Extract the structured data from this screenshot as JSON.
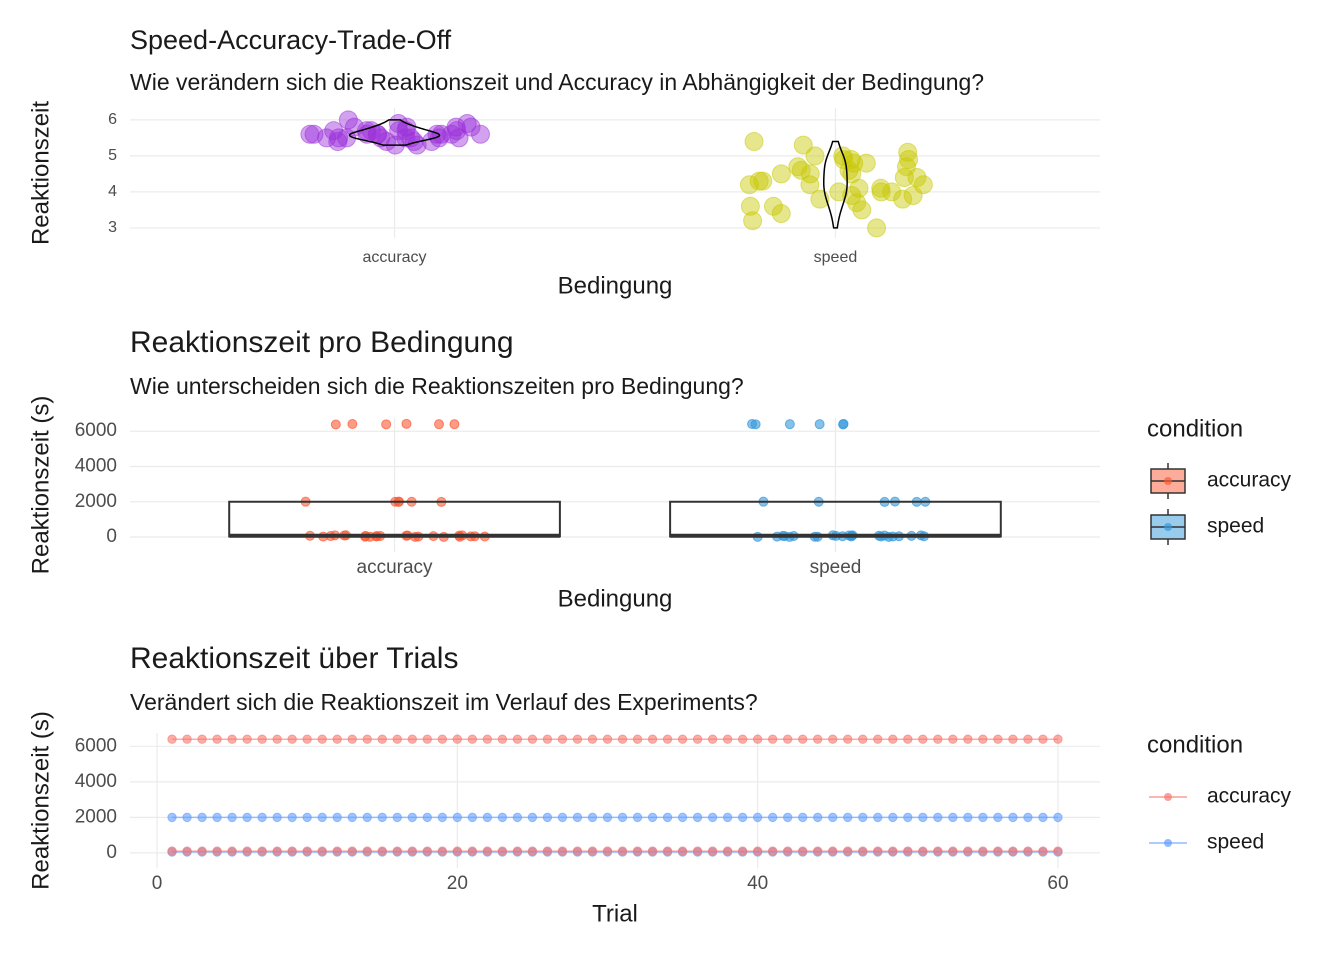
{
  "chart_data": [
    {
      "type": "violin",
      "title": "Speed-Accuracy-Trade-Off",
      "subtitle": "Wie verändern sich die Reaktionszeit und Accuracy in Abhängigkeit der Bedingung?",
      "x_label": "Bedingung",
      "y_label": "Reaktionszeit",
      "categories": [
        "accuracy",
        "speed"
      ],
      "colors": [
        "#9b30d9",
        "#c8c800"
      ],
      "values": [
        [
          5.5,
          5.6,
          5.7,
          5.4,
          5.8,
          5.6,
          5.5,
          5.3,
          5.7,
          5.9,
          5.6,
          5.5,
          5.4,
          5.6,
          5.8,
          5.7,
          5.5,
          6.0,
          5.6,
          5.4,
          5.5,
          5.7,
          5.6,
          5.3,
          5.8,
          5.5,
          5.6,
          5.7,
          5.9,
          5.4,
          5.6,
          5.5,
          5.7,
          5.6,
          5.8,
          5.5
        ],
        [
          4.9,
          5.4,
          4.2,
          3.8,
          4.5,
          5.1,
          3.5,
          4.0,
          4.3,
          4.8,
          3.9,
          4.6,
          5.0,
          4.1,
          3.7,
          4.4,
          4.9,
          3.2,
          4.0,
          4.7,
          5.3,
          3.6,
          4.2,
          4.5,
          3.0,
          4.8,
          4.1,
          3.9,
          4.6,
          3.4,
          4.3,
          5.0,
          4.4,
          3.8,
          4.7,
          4.2,
          3.6,
          4.9,
          4.0,
          4.5
        ]
      ],
      "ylim": [
        2.72,
        6.33
      ],
      "yticks": [
        3,
        4,
        5,
        6
      ],
      "grid": true
    },
    {
      "type": "box",
      "title": "Reaktionszeit pro Bedingung",
      "subtitle": "Wie unterscheiden sich die Reaktionszeiten pro Bedingung?",
      "x_label": "Bedingung",
      "y_label": "Reaktionszeit (s)",
      "categories": [
        "accuracy",
        "speed"
      ],
      "legend_title": "condition",
      "legend": "right",
      "series": [
        {
          "name": "accuracy",
          "color": "#fc5a35",
          "values": [
            6380,
            6400,
            6420,
            6390,
            6410,
            6400,
            1990,
            2000,
            2010,
            1995,
            2005,
            2000,
            10,
            40,
            80,
            20,
            60,
            100,
            30,
            50,
            90,
            15,
            70,
            25,
            45,
            85,
            5,
            55,
            35,
            95,
            65,
            75,
            12,
            48,
            88,
            22
          ]
        },
        {
          "name": "speed",
          "color": "#3498db",
          "values": [
            6390,
            6410,
            6400,
            6380,
            6420,
            6400,
            2000,
            1995,
            2005,
            2010,
            1990,
            2000,
            8,
            42,
            78,
            18,
            62,
            98,
            28,
            52,
            92,
            14,
            68,
            26,
            44,
            84,
            6,
            56,
            34,
            94,
            66,
            74,
            10,
            46,
            86,
            24
          ]
        }
      ],
      "ylim": [
        -850,
        6750
      ],
      "yticks": [
        0,
        2000,
        4000,
        6000
      ],
      "grid": true
    },
    {
      "type": "line",
      "title": "Reaktionszeit über Trials",
      "subtitle": "Verändert sich die Reaktionszeit im Verlauf des Experiments?",
      "x_label": "Trial",
      "y_label": "Reaktionszeit (s)",
      "legend_title": "condition",
      "legend": "right",
      "x": [
        1,
        2,
        3,
        4,
        5,
        6,
        7,
        8,
        9,
        10,
        11,
        12,
        13,
        14,
        15,
        16,
        17,
        18,
        19,
        20,
        21,
        22,
        23,
        24,
        25,
        26,
        27,
        28,
        29,
        30,
        31,
        32,
        33,
        34,
        35,
        36,
        37,
        38,
        39,
        40,
        41,
        42,
        43,
        44,
        45,
        46,
        47,
        48,
        49,
        50,
        51,
        52,
        53,
        54,
        55,
        56,
        57,
        58,
        59,
        60
      ],
      "series": [
        {
          "name": "accuracy",
          "color": "#F8766D",
          "values": [
            6400,
            6400,
            6400,
            6400,
            6400,
            6400,
            6400,
            6400,
            6400,
            6400,
            6400,
            6400,
            6400,
            6400,
            6400,
            6400,
            6400,
            6400,
            6400,
            6400,
            6400,
            6400,
            6400,
            6400,
            6400,
            6400,
            6400,
            6400,
            6400,
            6400,
            6400,
            6400,
            6400,
            6400,
            6400,
            6400,
            6400,
            6400,
            6400,
            6400,
            6400,
            6400,
            6400,
            6400,
            6400,
            6400,
            6400,
            6400,
            6400,
            6400,
            6400,
            6400,
            6400,
            6400,
            6400,
            6400,
            6400,
            6400,
            6400,
            6400
          ]
        },
        {
          "name": "speed",
          "color": "#619CFF",
          "values": [
            2000,
            2000,
            2000,
            2000,
            2000,
            2000,
            2000,
            2000,
            2000,
            2000,
            2000,
            2000,
            2000,
            2000,
            2000,
            2000,
            2000,
            2000,
            2000,
            2000,
            2000,
            2000,
            2000,
            2000,
            2000,
            2000,
            2000,
            2000,
            2000,
            2000,
            2000,
            2000,
            2000,
            2000,
            2000,
            2000,
            2000,
            2000,
            2000,
            2000,
            2000,
            2000,
            2000,
            2000,
            2000,
            2000,
            2000,
            2000,
            2000,
            2000,
            2000,
            2000,
            2000,
            2000,
            2000,
            2000,
            2000,
            2000,
            2000,
            2000
          ]
        },
        {
          "name": "speed",
          "color": "#619CFF",
          "values": [
            50,
            50,
            50,
            50,
            50,
            50,
            50,
            50,
            50,
            50,
            50,
            50,
            50,
            50,
            50,
            50,
            50,
            50,
            50,
            50,
            50,
            50,
            50,
            50,
            50,
            50,
            50,
            50,
            50,
            50,
            50,
            50,
            50,
            50,
            50,
            50,
            50,
            50,
            50,
            50,
            50,
            50,
            50,
            50,
            50,
            50,
            50,
            50,
            50,
            50,
            50,
            50,
            50,
            50,
            50,
            50,
            50,
            50,
            50,
            50
          ]
        },
        {
          "name": "accuracy",
          "color": "#F8766D",
          "values": [
            100,
            100,
            100,
            100,
            100,
            100,
            100,
            100,
            100,
            100,
            100,
            100,
            100,
            100,
            100,
            100,
            100,
            100,
            100,
            100,
            100,
            100,
            100,
            100,
            100,
            100,
            100,
            100,
            100,
            100,
            100,
            100,
            100,
            100,
            100,
            100,
            100,
            100,
            100,
            100,
            100,
            100,
            100,
            100,
            100,
            100,
            100,
            100,
            100,
            100,
            100,
            100,
            100,
            100,
            100,
            100,
            100,
            100,
            100,
            100
          ]
        }
      ],
      "xlim": [
        -1.8,
        62.8
      ],
      "xticks": [
        0,
        20,
        40,
        60
      ],
      "ylim": [
        -850,
        6750
      ],
      "yticks": [
        0,
        2000,
        4000,
        6000
      ],
      "grid": true
    }
  ]
}
